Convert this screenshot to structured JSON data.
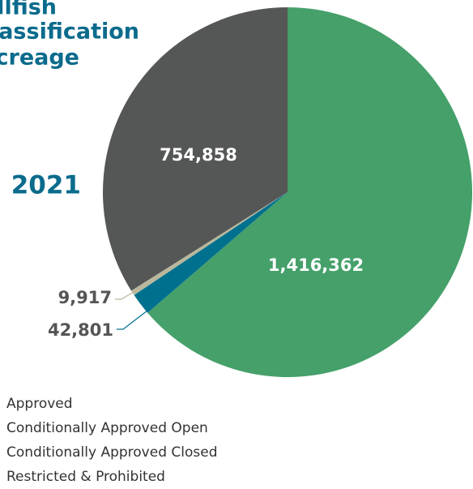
{
  "chart_data": {
    "type": "pie",
    "title_lines": [
      "Shellfish",
      "Classification",
      "Acreage"
    ],
    "subtitle": "2021",
    "categories": [
      "Approved",
      "Conditionally Approved Open",
      "Conditionally Approved Closed",
      "Restricted & Prohibited"
    ],
    "values": [
      1416362,
      42801,
      9917,
      754858
    ],
    "value_labels": [
      "1,416,362",
      "42,801",
      "9,917",
      "754,858"
    ],
    "colors": [
      "#45a06a",
      "#00708f",
      "#b9b79c",
      "#555756"
    ]
  }
}
